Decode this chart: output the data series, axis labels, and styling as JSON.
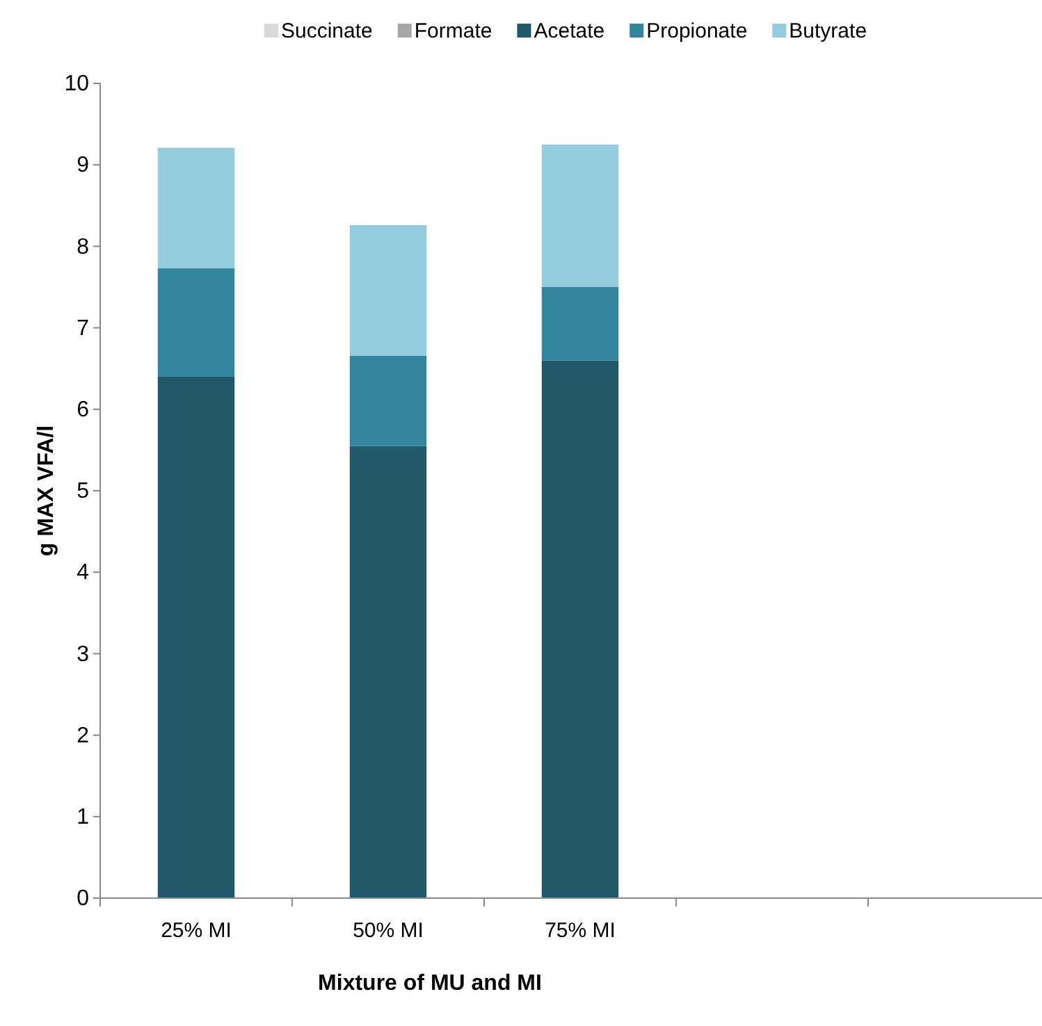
{
  "chart_data": {
    "type": "bar",
    "stacked": true,
    "xlabel": "Mixture of MU and  MI",
    "ylabel": "g MAX VFA/l",
    "categories": [
      "25% MI",
      "50% MI",
      "75% MI",
      null,
      null
    ],
    "series": [
      {
        "name": "Succinate",
        "color": "#d9d9d9",
        "values": [
          0,
          0,
          0,
          null,
          null
        ]
      },
      {
        "name": "Formate",
        "color": "#a6a6a6",
        "values": [
          0,
          0,
          0,
          null,
          null
        ]
      },
      {
        "name": "Acetate",
        "color": "#215968",
        "values": [
          6.4,
          5.55,
          6.6,
          null,
          null
        ]
      },
      {
        "name": "Propionate",
        "color": "#31859c",
        "values": [
          1.33,
          1.11,
          0.9,
          null,
          null
        ]
      },
      {
        "name": "Butyrate",
        "color": "#93cddd",
        "values": [
          1.48,
          1.6,
          1.75,
          null,
          null
        ]
      }
    ],
    "ylim": [
      0,
      10
    ],
    "yticks": [
      0,
      1,
      2,
      3,
      4,
      5,
      6,
      7,
      8,
      9,
      10
    ],
    "grid": false,
    "legend": "top"
  }
}
